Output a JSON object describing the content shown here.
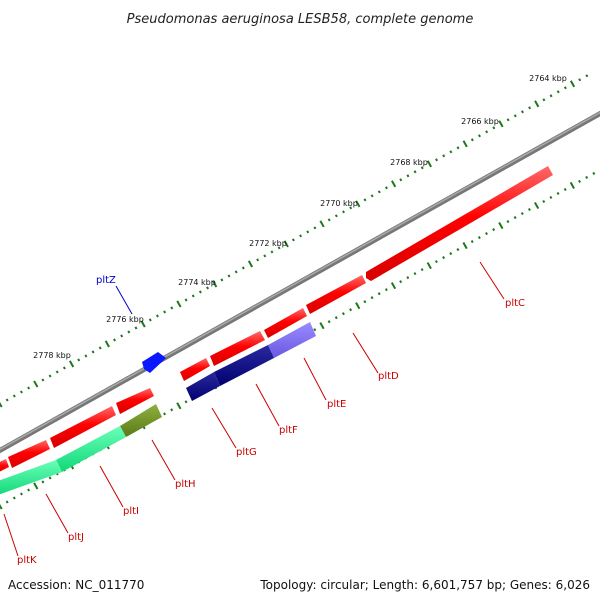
{
  "title": "Pseudomonas aeruginosa LESB58, complete genome",
  "footer": {
    "accession": "Accession: NC_011770",
    "topology": "Topology: circular; Length: 6,601,757 bp; Genes: 6,026"
  },
  "colors": {
    "backbone": "#8a8a8a",
    "forward_gene": "#ff1a1a",
    "reverse_gene_a": "#000080",
    "reverse_gene_b": "#7b68ee",
    "reverse_gene_c": "#1aee8a",
    "reverse_gene_d": "#6b8e23",
    "label_red": "#cc0000",
    "label_blue": "#0000cc",
    "tick": "#1a7a1a"
  },
  "scale": {
    "kbp_labels": [
      "2764 kbp",
      "2766 kbp",
      "2768 kbp",
      "2770 kbp",
      "2772 kbp",
      "2774 kbp",
      "2776 kbp",
      "2778 kbp"
    ]
  },
  "genes": [
    {
      "name": "pltZ",
      "color": "blue"
    },
    {
      "name": "pltC",
      "color": "red"
    },
    {
      "name": "pltD",
      "color": "red"
    },
    {
      "name": "pltE",
      "color": "red"
    },
    {
      "name": "pltF",
      "color": "red"
    },
    {
      "name": "pltG",
      "color": "red"
    },
    {
      "name": "pltH",
      "color": "red"
    },
    {
      "name": "pltI",
      "color": "red"
    },
    {
      "name": "pltJ",
      "color": "red"
    },
    {
      "name": "pltK",
      "color": "red"
    }
  ]
}
